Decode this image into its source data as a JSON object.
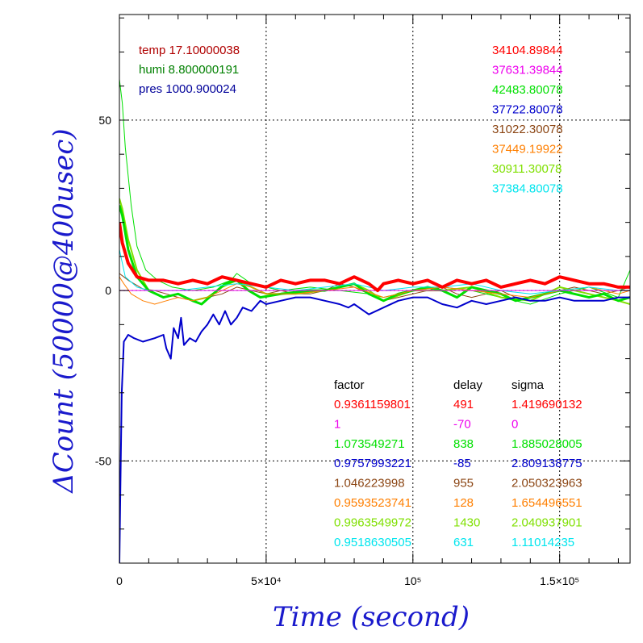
{
  "chart_data": {
    "type": "line",
    "xlabel": "Time (second)",
    "ylabel": "ΔCount (50000@400usec)",
    "xlim": [
      0,
      174000
    ],
    "ylim": [
      -80,
      81
    ],
    "x_ticks": [
      {
        "value": 0,
        "label": "0"
      },
      {
        "value": 50000,
        "label": "5×10⁴"
      },
      {
        "value": 100000,
        "label": "10⁵"
      },
      {
        "value": 150000,
        "label": "1.5×10⁵"
      }
    ],
    "y_ticks": [
      {
        "value": 50,
        "label": "50"
      },
      {
        "value": 0,
        "label": "0"
      },
      {
        "value": -50,
        "label": "-50"
      }
    ],
    "grid": true,
    "environment": [
      {
        "label": "temp 17.10000038",
        "color": "#b00000"
      },
      {
        "label": "humi 8.800000191",
        "color": "#008000"
      },
      {
        "label": "pres 1000.900024",
        "color": "#00009a"
      }
    ],
    "baseline_values": [
      {
        "label": "34104.89844",
        "color": "#ff0000"
      },
      {
        "label": "37631.39844",
        "color": "#ee00ee"
      },
      {
        "label": "42483.80078",
        "color": "#00e000"
      },
      {
        "label": "37722.80078",
        "color": "#0000cc"
      },
      {
        "label": "31022.30078",
        "color": "#8b4513"
      },
      {
        "label": "37449.19922",
        "color": "#ff7f00"
      },
      {
        "label": "30911.30078",
        "color": "#7fe000"
      },
      {
        "label": "37384.80078",
        "color": "#00e5ee"
      }
    ],
    "fit_table": {
      "headers": [
        "factor",
        "delay",
        "sigma"
      ],
      "rows": [
        {
          "factor": "0.9361159801",
          "delay": "491",
          "sigma": "1.419690132",
          "color": "#ff0000"
        },
        {
          "factor": "1",
          "delay": "-70",
          "sigma": "0",
          "color": "#ee00ee"
        },
        {
          "factor": "1.073549271",
          "delay": "838",
          "sigma": "1.885028005",
          "color": "#00e000"
        },
        {
          "factor": "0.9757993221",
          "delay": "-85",
          "sigma": "2.809138775",
          "color": "#0000cc"
        },
        {
          "factor": "1.046223998",
          "delay": "955",
          "sigma": "2.050323963",
          "color": "#8b4513"
        },
        {
          "factor": "0.9593523741",
          "delay": "128",
          "sigma": "1.654496551",
          "color": "#ff7f00"
        },
        {
          "factor": "0.9963549972",
          "delay": "1430",
          "sigma": "2.040937901",
          "color": "#7fe000"
        },
        {
          "factor": "0.9518630505",
          "delay": "631",
          "sigma": "1.11014235",
          "color": "#00e5ee"
        }
      ]
    },
    "series": [
      {
        "color": "#8b4513",
        "width": 1,
        "x": [
          0,
          1500,
          3000,
          5000,
          8000,
          12000,
          16000,
          20000,
          25000,
          30000,
          35000,
          40000,
          45000,
          50000,
          55000,
          60000,
          65000,
          70000,
          75000,
          80000,
          85000,
          90000,
          95000,
          100000,
          105000,
          110000,
          115000,
          120000,
          125000,
          130000,
          135000,
          140000,
          145000,
          150000,
          155000,
          160000,
          165000,
          170000,
          174000
        ],
        "y": [
          5,
          4,
          3,
          2,
          0.5,
          0,
          -1,
          -2,
          -3,
          -2,
          -1,
          1,
          0,
          -1,
          0,
          -1,
          -1,
          0,
          2,
          1,
          -1,
          -3,
          -2,
          -1,
          0,
          1,
          -1,
          -2,
          -1,
          0,
          -2,
          -3,
          -1,
          0,
          1,
          0,
          -1,
          0,
          1
        ]
      },
      {
        "color": "#00e000",
        "width": 1,
        "x": [
          0,
          1000,
          2000,
          4000,
          6000,
          9000,
          13000,
          18000,
          25000,
          32000,
          38000,
          40000,
          45000,
          55000,
          65000,
          75000,
          85000,
          90000,
          100000,
          110000,
          120000,
          130000,
          140000,
          150000,
          160000,
          170000,
          174000
        ],
        "y": [
          62,
          55,
          42,
          25,
          13,
          6,
          3,
          1,
          0,
          1,
          3,
          5,
          2,
          0,
          1,
          0,
          -1,
          -2,
          0,
          1,
          0,
          -2,
          -4,
          -1,
          1,
          -2,
          6
        ]
      },
      {
        "color": "#7fe000",
        "width": 2,
        "x": [
          0,
          1000,
          3000,
          6000,
          10000,
          15000,
          20000,
          25000,
          30000,
          35000,
          40000,
          45000,
          50000,
          60000,
          70000,
          80000,
          85000,
          90000,
          100000,
          110000,
          120000,
          130000,
          140000,
          150000,
          160000,
          170000,
          174000
        ],
        "y": [
          27,
          24,
          15,
          6,
          0,
          -2,
          -1,
          -3,
          -2,
          1,
          3,
          1,
          -1,
          -1,
          0,
          2,
          0,
          -3,
          0,
          0,
          1,
          -2,
          -3,
          1,
          -1,
          -3,
          -4
        ]
      },
      {
        "color": "#00e000",
        "width": 3,
        "x": [
          0,
          1000,
          3000,
          6000,
          10000,
          15000,
          20000,
          25000,
          28000,
          32000,
          36000,
          40000,
          44000,
          48000,
          55000,
          65000,
          70000,
          75000,
          80000,
          85000,
          90000,
          95000,
          100000,
          105000,
          110000,
          115000,
          120000,
          125000,
          130000,
          135000,
          140000,
          145000,
          150000,
          155000,
          160000,
          165000,
          170000,
          174000
        ],
        "y": [
          25,
          22,
          12,
          4,
          0,
          -2,
          -1,
          -3,
          -4,
          -1,
          2,
          3,
          0,
          -2,
          -1,
          0,
          0,
          1,
          2,
          -1,
          -3,
          -1,
          0,
          1,
          0,
          -2,
          1,
          0,
          -1,
          -3,
          -2,
          -1,
          0,
          -1,
          -2,
          -1,
          -3,
          -2
        ]
      },
      {
        "color": "#ff7f00",
        "width": 1,
        "x": [
          0,
          1500,
          4000,
          8000,
          12000,
          16000,
          20000,
          25000,
          30000,
          35000,
          40000,
          45000,
          50000,
          60000,
          70000,
          80000,
          90000,
          100000,
          110000,
          120000,
          130000,
          140000,
          150000,
          160000,
          170000,
          174000
        ],
        "y": [
          4,
          2,
          -1,
          -3,
          -4,
          -3,
          -2,
          -3,
          -2,
          0,
          2,
          1,
          -1,
          -1,
          0,
          1,
          -2,
          0,
          1,
          0,
          -1,
          -2,
          0,
          1,
          -1,
          0
        ]
      },
      {
        "color": "#00e5ee",
        "width": 1,
        "x": [
          0,
          2000,
          6000,
          10000,
          20000,
          30000,
          40000,
          50000,
          60000,
          70000,
          80000,
          90000,
          100000,
          110000,
          120000,
          130000,
          140000,
          150000,
          160000,
          170000,
          174000
        ],
        "y": [
          12,
          4,
          1,
          0,
          0,
          1,
          2,
          1,
          0,
          1,
          2,
          0,
          1,
          1,
          2,
          0,
          -1,
          0,
          1,
          0,
          0
        ]
      },
      {
        "color": "#ee00ee",
        "width": 1,
        "x": [
          0,
          174000
        ],
        "y": [
          0,
          0
        ]
      },
      {
        "color": "#0000cc",
        "width": 2,
        "x": [
          0,
          300,
          800,
          1500,
          3000,
          5000,
          8000,
          12000,
          15000,
          16000,
          17500,
          18500,
          20000,
          21000,
          22000,
          24000,
          26000,
          28000,
          30000,
          32000,
          34000,
          36000,
          38000,
          40000,
          42000,
          45000,
          48000,
          50000,
          55000,
          60000,
          65000,
          70000,
          75000,
          78000,
          80000,
          85000,
          90000,
          95000,
          100000,
          105000,
          110000,
          115000,
          120000,
          125000,
          130000,
          135000,
          140000,
          145000,
          150000,
          155000,
          160000,
          165000,
          170000,
          174000
        ],
        "y": [
          -80,
          -60,
          -30,
          -15,
          -13,
          -14,
          -15,
          -14,
          -13,
          -17,
          -20,
          -11,
          -14,
          -8,
          -16,
          -14,
          -15,
          -12,
          -10,
          -7,
          -10,
          -6,
          -10,
          -8,
          -5,
          -6,
          -3,
          -4,
          -3,
          -2,
          -2,
          -3,
          -4,
          -5,
          -4,
          -7,
          -5,
          -3,
          -2,
          -2,
          -4,
          -5,
          -3,
          -4,
          -3,
          -2,
          -3,
          -3,
          -2,
          -3,
          -3,
          -3,
          -2,
          -2
        ]
      },
      {
        "color": "#ff0000",
        "width": 4,
        "x": [
          0,
          1000,
          3000,
          6000,
          10000,
          15000,
          20000,
          25000,
          30000,
          35000,
          40000,
          45000,
          50000,
          55000,
          60000,
          65000,
          70000,
          75000,
          80000,
          85000,
          88000,
          90000,
          95000,
          100000,
          105000,
          110000,
          115000,
          120000,
          125000,
          130000,
          135000,
          140000,
          145000,
          150000,
          155000,
          160000,
          165000,
          170000,
          174000
        ],
        "y": [
          20,
          14,
          8,
          4,
          3,
          3,
          2,
          3,
          2,
          4,
          3,
          2,
          1,
          3,
          2,
          3,
          3,
          2,
          4,
          2,
          0,
          2,
          3,
          2,
          3,
          1,
          3,
          2,
          3,
          1,
          2,
          3,
          2,
          4,
          3,
          2,
          2,
          1,
          1
        ]
      }
    ]
  }
}
